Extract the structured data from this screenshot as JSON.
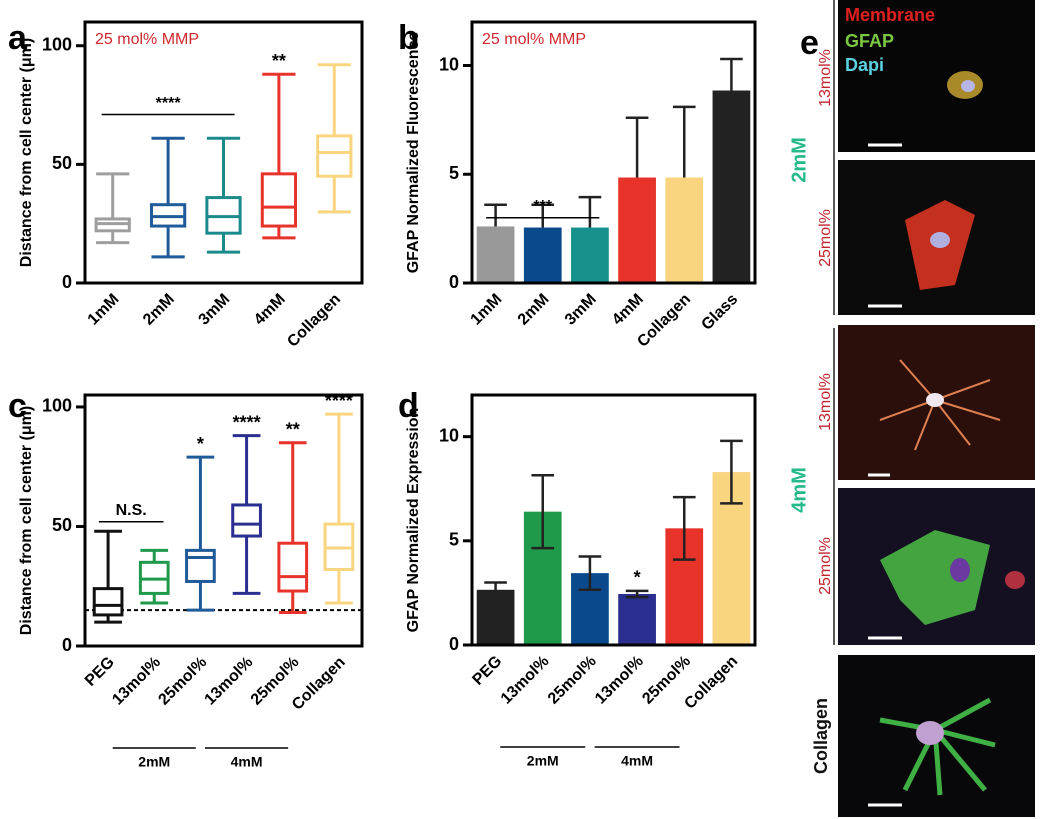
{
  "chart_data": [
    {
      "type": "box",
      "panel": "a",
      "annotation": "25 mol% MMP",
      "ylabel": "Distance from cell center (μm)",
      "categories": [
        "1mM",
        "2mM",
        "3mM",
        "4mM",
        "Collagen"
      ],
      "colors": [
        "#9e9e9e",
        "#1f5a99",
        "#1b8a8c",
        "#e8332a",
        "#f8d57e"
      ],
      "min": [
        17,
        11,
        13,
        19,
        30
      ],
      "q1": [
        22,
        24,
        21,
        24,
        45
      ],
      "median": [
        25,
        28,
        28,
        32,
        55
      ],
      "q3": [
        27,
        33,
        36,
        46,
        62
      ],
      "max": [
        46,
        61,
        61,
        88,
        92
      ],
      "sig_labels": [
        null,
        null,
        null,
        "**",
        null
      ],
      "brackets": [
        {
          "text": "****",
          "from": 0,
          "to": 2,
          "y": 71
        }
      ],
      "ylim": [
        0,
        110
      ],
      "yticks": [
        0,
        50,
        100
      ]
    },
    {
      "type": "bar",
      "panel": "b",
      "annotation": "25 mol% MMP",
      "ylabel": "GFAP Normalized Fluorescence",
      "categories": [
        "1mM",
        "2mM",
        "3mM",
        "4mM",
        "Collagen",
        "Glass"
      ],
      "colors": [
        "#999999",
        "#0a4a8c",
        "#17918c",
        "#e8332a",
        "#f8d57e",
        "#222222"
      ],
      "values": [
        2.6,
        2.55,
        2.55,
        4.85,
        4.85,
        8.85
      ],
      "errors": [
        1.0,
        1.05,
        1.4,
        2.75,
        3.25,
        1.45
      ],
      "error_direction": "up",
      "brackets": [
        {
          "text": "***",
          "from": 0,
          "to": 2,
          "y": 3.0
        }
      ],
      "ylim": [
        0,
        12
      ],
      "yticks": [
        0,
        5,
        10
      ]
    },
    {
      "type": "box",
      "panel": "c",
      "ylabel": "Distance from cell center (μm)",
      "categories": [
        "PEG",
        "13mol%",
        "25mol%",
        "13mol%",
        "25mol%",
        "Collagen"
      ],
      "colors": [
        "#111111",
        "#1e9a4a",
        "#1f5a99",
        "#2b2f8f",
        "#e8332a",
        "#f8d57e"
      ],
      "min": [
        10,
        18,
        15,
        22,
        14,
        18
      ],
      "q1": [
        13,
        22,
        27,
        46,
        23,
        32
      ],
      "median": [
        17,
        28,
        37,
        51,
        29,
        41
      ],
      "q3": [
        24,
        35,
        40,
        59,
        43,
        51
      ],
      "max": [
        48,
        40,
        79,
        88,
        85,
        97
      ],
      "sig_labels": [
        null,
        null,
        "*",
        "****",
        "**",
        "****"
      ],
      "brackets": [
        {
          "text": "N.S.",
          "from": 0,
          "to": 1,
          "y": 52
        }
      ],
      "groups": [
        {
          "label": "2mM",
          "from": 1,
          "to": 2
        },
        {
          "label": "4mM",
          "from": 3,
          "to": 4
        }
      ],
      "reference_line": 15,
      "ylim": [
        0,
        105
      ],
      "yticks": [
        0,
        50,
        100
      ]
    },
    {
      "type": "bar",
      "panel": "d",
      "ylabel": "GFAP Normalized Expression",
      "categories": [
        "PEG",
        "13mol%",
        "25mol%",
        "13mol%",
        "25mol%",
        "Collagen"
      ],
      "colors": [
        "#222222",
        "#1e9a4a",
        "#0a4a8c",
        "#2b2f8f",
        "#e8332a",
        "#f8d57e"
      ],
      "values": [
        2.65,
        6.4,
        3.45,
        2.45,
        5.6,
        8.3
      ],
      "errors": [
        0.35,
        1.75,
        0.8,
        0.15,
        1.5,
        1.5
      ],
      "error_direction": "both",
      "sig_labels": [
        null,
        null,
        null,
        "*",
        null,
        null
      ],
      "groups": [
        {
          "label": "2mM",
          "from": 1,
          "to": 2
        },
        {
          "label": "4mM",
          "from": 3,
          "to": 4
        }
      ],
      "ylim": [
        0,
        12
      ],
      "yticks": [
        0,
        5,
        10
      ]
    }
  ],
  "image_panel": {
    "panel": "e",
    "legend": [
      "Membrane",
      "GFAP",
      "Dapi"
    ],
    "rows": [
      "13mol%",
      "25mol%",
      "13mol%",
      "25mol%",
      "Collagen"
    ],
    "groups": [
      "2mM",
      "4mM"
    ]
  }
}
